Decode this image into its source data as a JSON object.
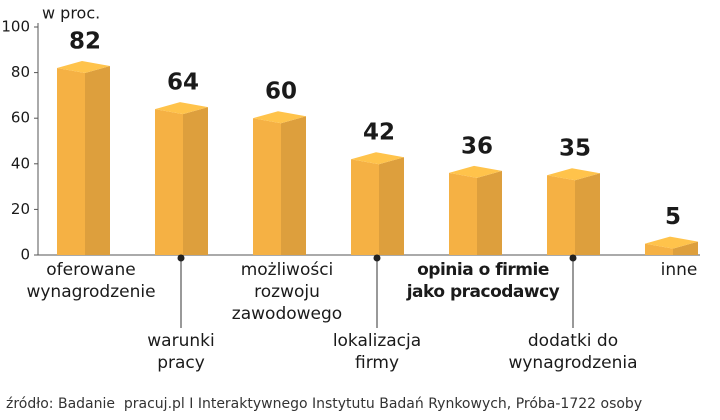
{
  "chart_data": {
    "type": "bar3d",
    "unit_label": "w proc.",
    "categories": [
      "oferowane\nwynagrodzenie",
      "warunki\npracy",
      "możliwości\nrozwoju\nzawodowego",
      "lokalizacja\nfirmy",
      "opinia o firmie\njako pracodawcy",
      "dodatki do\nwynagrodzenia",
      "inne"
    ],
    "values": [
      82,
      64,
      60,
      42,
      36,
      35,
      5
    ],
    "color": "#f5b144",
    "highlight_index": 4,
    "highlight_color": "#c8173f",
    "ylim": [
      0,
      100
    ],
    "yticks": [
      0,
      20,
      40,
      60,
      80,
      100
    ],
    "source": "źródło: Badanie  pracuj.pl I Interaktywnego Instytutu Badań Rynkowych, Próba-1722 osoby"
  }
}
